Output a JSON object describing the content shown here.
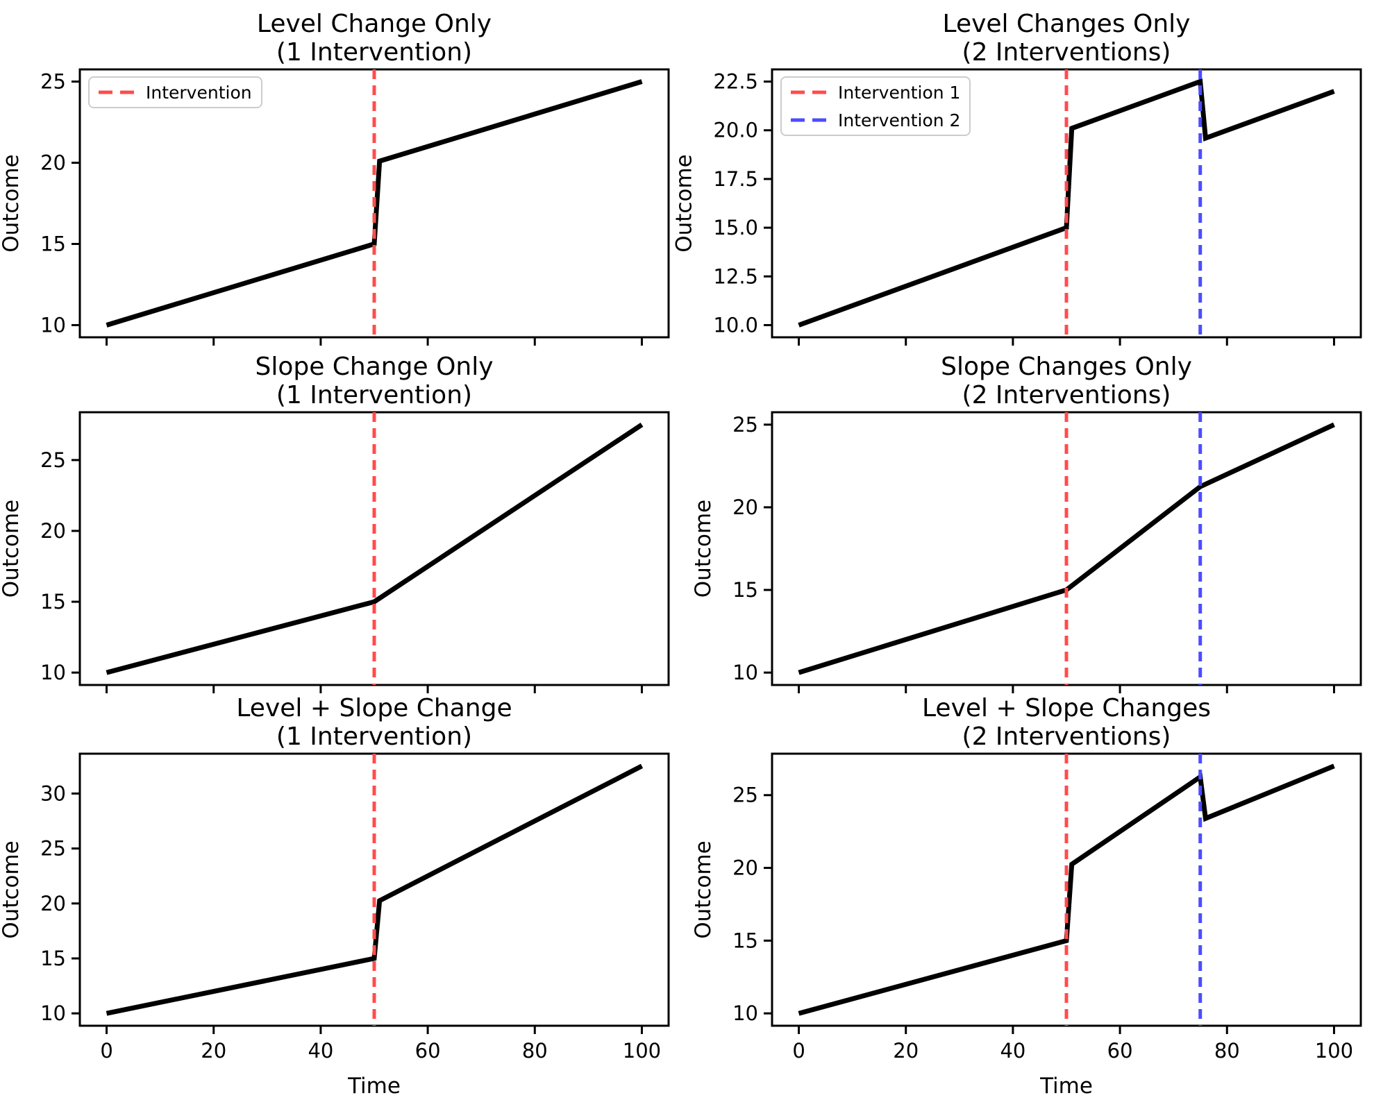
{
  "figure": {
    "background": "#ffffff",
    "text_color": "#000000",
    "line_color": "#000000"
  },
  "colors": {
    "series": "#000000",
    "intervention1": "#ff4c4c",
    "intervention2": "#4c4cff",
    "legend_border": "#cccccc",
    "legend_bg": "#ffffff"
  },
  "chart_data": [
    {
      "type": "line",
      "title_line1": "Level Change Only",
      "title_line2": "(1 Intervention)",
      "ylabel": "Outcome",
      "xlabel": "",
      "xlim": [
        -5,
        105
      ],
      "ylim": [
        9.25,
        25.75
      ],
      "xtick_values": [
        0,
        20,
        40,
        60,
        80,
        100
      ],
      "xtick_labels": [],
      "ytick_values": [
        10,
        15,
        20,
        25
      ],
      "ytick_labels": [
        "10",
        "15",
        "20",
        "25"
      ],
      "series": [
        {
          "name": "Outcome",
          "color": "#000000",
          "points": [
            [
              0,
              10
            ],
            [
              50,
              15
            ],
            [
              51,
              20.1
            ],
            [
              100,
              25
            ]
          ]
        }
      ],
      "vlines": [
        {
          "x": 50,
          "color": "#ff4c4c"
        }
      ],
      "legend": [
        {
          "label": "Intervention",
          "color": "#ff4c4c"
        }
      ],
      "legend_position": "upper-left"
    },
    {
      "type": "line",
      "title_line1": "Level Changes Only",
      "title_line2": "(2 Interventions)",
      "ylabel": "Outcome",
      "xlabel": "",
      "xlim": [
        -5,
        105
      ],
      "ylim": [
        9.375,
        23.125
      ],
      "xtick_values": [
        0,
        20,
        40,
        60,
        80,
        100
      ],
      "xtick_labels": [],
      "ytick_values": [
        10,
        12.5,
        15,
        17.5,
        20,
        22.5
      ],
      "ytick_labels": [
        "10.0",
        "12.5",
        "15.0",
        "17.5",
        "20.0",
        "22.5"
      ],
      "series": [
        {
          "name": "Outcome",
          "color": "#000000",
          "points": [
            [
              0,
              10
            ],
            [
              50,
              15
            ],
            [
              51,
              20.1
            ],
            [
              75,
              22.5
            ],
            [
              76,
              19.6
            ],
            [
              100,
              22
            ]
          ]
        }
      ],
      "vlines": [
        {
          "x": 50,
          "color": "#ff4c4c"
        },
        {
          "x": 75,
          "color": "#4c4cff"
        }
      ],
      "legend": [
        {
          "label": "Intervention 1",
          "color": "#ff4c4c"
        },
        {
          "label": "Intervention 2",
          "color": "#4c4cff"
        }
      ],
      "legend_position": "upper-left"
    },
    {
      "type": "line",
      "title_line1": "Slope Change Only",
      "title_line2": "(1 Intervention)",
      "ylabel": "Outcome",
      "xlabel": "",
      "xlim": [
        -5,
        105
      ],
      "ylim": [
        9.125,
        28.375
      ],
      "xtick_values": [
        0,
        20,
        40,
        60,
        80,
        100
      ],
      "xtick_labels": [],
      "ytick_values": [
        10,
        15,
        20,
        25
      ],
      "ytick_labels": [
        "10",
        "15",
        "20",
        "25"
      ],
      "series": [
        {
          "name": "Outcome",
          "color": "#000000",
          "points": [
            [
              0,
              10
            ],
            [
              50,
              15
            ],
            [
              100,
              27.5
            ]
          ]
        }
      ],
      "vlines": [
        {
          "x": 50,
          "color": "#ff4c4c"
        }
      ],
      "legend": [],
      "legend_position": "none"
    },
    {
      "type": "line",
      "title_line1": "Slope Changes Only",
      "title_line2": "(2 Interventions)",
      "ylabel": "Outcome",
      "xlabel": "",
      "xlim": [
        -5,
        105
      ],
      "ylim": [
        9.25,
        25.75
      ],
      "xtick_values": [
        0,
        20,
        40,
        60,
        80,
        100
      ],
      "xtick_labels": [],
      "ytick_values": [
        10,
        15,
        20,
        25
      ],
      "ytick_labels": [
        "10",
        "15",
        "20",
        "25"
      ],
      "series": [
        {
          "name": "Outcome",
          "color": "#000000",
          "points": [
            [
              0,
              10
            ],
            [
              50,
              15
            ],
            [
              75,
              21.25
            ],
            [
              100,
              25
            ]
          ]
        }
      ],
      "vlines": [
        {
          "x": 50,
          "color": "#ff4c4c"
        },
        {
          "x": 75,
          "color": "#4c4cff"
        }
      ],
      "legend": [],
      "legend_position": "none"
    },
    {
      "type": "line",
      "title_line1": "Level + Slope Change",
      "title_line2": "(1 Intervention)",
      "ylabel": "Outcome",
      "xlabel": "Time",
      "xlim": [
        -5,
        105
      ],
      "ylim": [
        8.875,
        33.625
      ],
      "xtick_values": [
        0,
        20,
        40,
        60,
        80,
        100
      ],
      "xtick_labels": [
        "0",
        "20",
        "40",
        "60",
        "80",
        "100"
      ],
      "ytick_values": [
        10,
        15,
        20,
        25,
        30
      ],
      "ytick_labels": [
        "10",
        "15",
        "20",
        "25",
        "30"
      ],
      "series": [
        {
          "name": "Outcome",
          "color": "#000000",
          "points": [
            [
              0,
              10
            ],
            [
              50,
              15
            ],
            [
              51,
              20.25
            ],
            [
              100,
              32.5
            ]
          ]
        }
      ],
      "vlines": [
        {
          "x": 50,
          "color": "#ff4c4c"
        }
      ],
      "legend": [],
      "legend_position": "none"
    },
    {
      "type": "line",
      "title_line1": "Level + Slope Changes",
      "title_line2": "(2 Interventions)",
      "ylabel": "Outcome",
      "xlabel": "Time",
      "xlim": [
        -5,
        105
      ],
      "ylim": [
        9.15,
        27.85
      ],
      "xtick_values": [
        0,
        20,
        40,
        60,
        80,
        100
      ],
      "xtick_labels": [
        "0",
        "20",
        "40",
        "60",
        "80",
        "100"
      ],
      "ytick_values": [
        10,
        15,
        20,
        25
      ],
      "ytick_labels": [
        "10",
        "15",
        "20",
        "25"
      ],
      "series": [
        {
          "name": "Outcome",
          "color": "#000000",
          "points": [
            [
              0,
              10
            ],
            [
              50,
              15
            ],
            [
              51,
              20.25
            ],
            [
              75,
              26.25
            ],
            [
              76,
              23.4
            ],
            [
              100,
              27
            ]
          ]
        }
      ],
      "vlines": [
        {
          "x": 50,
          "color": "#ff4c4c"
        },
        {
          "x": 75,
          "color": "#4c4cff"
        }
      ],
      "legend": [],
      "legend_position": "none"
    }
  ]
}
